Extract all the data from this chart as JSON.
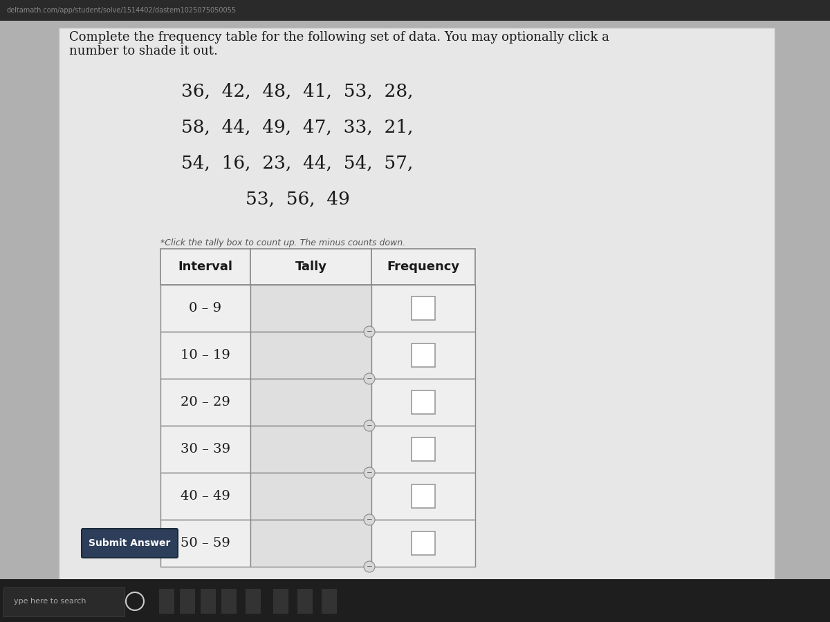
{
  "bg_outer": "#b0b0b0",
  "bg_panel": "#e8e7e7",
  "bg_inner": "#f0efef",
  "title_text1": "Complete the frequency table for the following set of data. You may optionally click a",
  "title_text2": "number to shade it out.",
  "dataset_lines": [
    "36,  42,  48,  41,  53,  28,",
    "58,  44,  49,  47,  33,  21,",
    "54,  16,  23,  44,  54,  57,",
    "53,  56,  49"
  ],
  "subtitle": "*Click the tally box to count up. The minus counts down.",
  "col_headers": [
    "Interval",
    "Tally",
    "Frequency"
  ],
  "intervals": [
    "0 – 9",
    "10 – 19",
    "20 – 29",
    "30 – 39",
    "40 – 49",
    "50 – 59"
  ],
  "submit_text": "Submit Answer",
  "header_bg": "#f0efef",
  "cell_bg": "#f0efef",
  "tally_bg": "#e0dfdf",
  "border_color": "#888888",
  "freq_box_color": "#ffffff",
  "freq_box_border": "#999999",
  "circle_color": "#aaaaaa",
  "circle_border": "#888888",
  "submit_bg": "#2c3e5a",
  "submit_border": "#1a2a3a",
  "taskbar_bg": "#1a1a1a",
  "title_fontsize": 13.0,
  "data_fontsize": 19,
  "interval_fontsize": 14,
  "header_fontsize": 13,
  "subtitle_fontsize": 9
}
